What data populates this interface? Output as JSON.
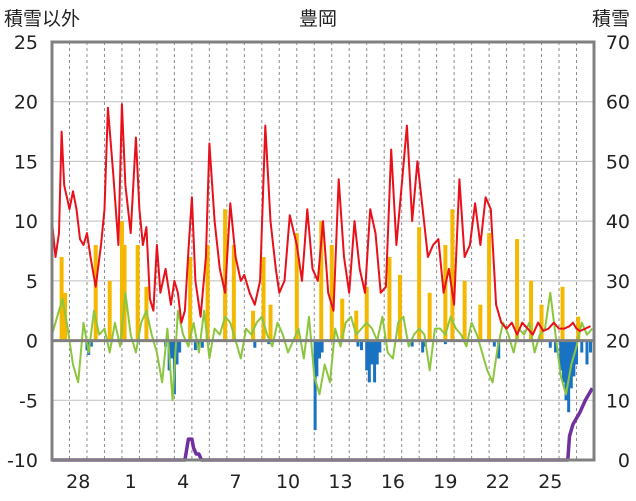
{
  "chart_data": {
    "type": "line",
    "title": "豊岡",
    "ylabel_left": "積雪以外",
    "ylabel_right": "積雪",
    "ylim_left": [
      -10,
      25
    ],
    "yticks_left": [
      "25",
      "20",
      "15",
      "10",
      "5",
      "0",
      "-5",
      "-10"
    ],
    "ylim_right": [
      0,
      70
    ],
    "yticks_right": [
      "70",
      "60",
      "50",
      "40",
      "30",
      "20",
      "10",
      "0"
    ],
    "xlim": [
      0,
      31
    ],
    "xticks": [
      {
        "x": 1.5,
        "label": "28"
      },
      {
        "x": 4.5,
        "label": "1"
      },
      {
        "x": 7.5,
        "label": "4"
      },
      {
        "x": 10.5,
        "label": "7"
      },
      {
        "x": 13.5,
        "label": "10"
      },
      {
        "x": 16.5,
        "label": "13"
      },
      {
        "x": 19.5,
        "label": "16"
      },
      {
        "x": 22.5,
        "label": "19"
      },
      {
        "x": 25.5,
        "label": "22"
      },
      {
        "x": 28.5,
        "label": "25"
      }
    ],
    "grid": "vertical dashed daily, horizontal solid",
    "colors": {
      "temperature": "#e8101a",
      "sunshine": "#f5b800",
      "precipitation": "#1a73c2",
      "temp_anomaly": "#8cc63f",
      "snow_depth": "#7030a0",
      "frame": "#808080",
      "grid": "#bfbfbf"
    },
    "series": [
      {
        "key": "temperature",
        "axis": "left",
        "x": [
          0.0,
          0.2,
          0.4,
          0.55,
          0.7,
          0.85,
          1.0,
          1.2,
          1.4,
          1.6,
          1.8,
          2.0,
          2.2,
          2.5,
          2.8,
          3.0,
          3.2,
          3.5,
          3.8,
          4.0,
          4.2,
          4.5,
          4.8,
          5.0,
          5.2,
          5.4,
          5.6,
          5.8,
          6.0,
          6.2,
          6.5,
          6.8,
          7.0,
          7.2,
          7.4,
          7.6,
          7.8,
          8.0,
          8.2,
          8.5,
          8.8,
          9.0,
          9.3,
          9.6,
          9.9,
          10.2,
          10.5,
          10.8,
          11.0,
          11.3,
          11.6,
          11.9,
          12.2,
          12.5,
          12.8,
          13.0,
          13.3,
          13.6,
          14.0,
          14.3,
          14.6,
          14.9,
          15.2,
          15.5,
          15.8,
          16.1,
          16.4,
          16.7,
          17.0,
          17.3,
          17.6,
          17.9,
          18.2,
          18.5,
          18.8,
          19.1,
          19.4,
          19.7,
          20.0,
          20.3,
          20.6,
          20.9,
          21.2,
          21.5,
          21.8,
          22.1,
          22.4,
          22.7,
          23.0,
          23.3,
          23.6,
          23.9,
          24.2,
          24.5,
          24.8,
          25.1,
          25.4,
          25.7,
          26.0,
          26.3,
          26.6,
          26.9,
          27.2,
          27.5,
          27.8,
          28.1,
          28.4,
          28.7,
          29.0,
          29.3,
          29.6,
          29.8,
          30.0,
          30.2,
          30.5,
          30.8
        ],
        "values": [
          10.0,
          7.0,
          9.0,
          17.5,
          13.0,
          12.0,
          11.0,
          12.5,
          11.0,
          8.5,
          8.0,
          9.0,
          7.0,
          4.5,
          8.0,
          11.0,
          19.5,
          14.0,
          8.0,
          19.8,
          13.0,
          9.0,
          17.0,
          11.0,
          8.0,
          9.5,
          3.5,
          2.5,
          8.0,
          4.0,
          6.0,
          3.0,
          5.0,
          4.0,
          1.5,
          2.5,
          7.5,
          12.0,
          5.0,
          2.0,
          7.0,
          16.5,
          10.0,
          6.0,
          4.0,
          11.5,
          7.0,
          5.0,
          5.5,
          4.0,
          3.0,
          5.0,
          18.0,
          10.0,
          6.0,
          4.0,
          5.0,
          10.5,
          8.0,
          5.0,
          11.0,
          6.0,
          5.0,
          10.0,
          4.0,
          2.5,
          13.5,
          7.0,
          4.0,
          10.0,
          6.0,
          4.0,
          11.0,
          9.0,
          4.0,
          4.5,
          16.0,
          8.0,
          13.0,
          18.0,
          10.0,
          15.0,
          11.0,
          7.0,
          8.0,
          8.5,
          4.0,
          6.0,
          3.0,
          13.5,
          7.0,
          8.0,
          11.5,
          8.0,
          12.0,
          11.0,
          3.0,
          1.5,
          1.0,
          1.5,
          0.5,
          1.5,
          1.0,
          0.5,
          1.5,
          0.8,
          1.0,
          1.5,
          1.0,
          1.0,
          1.2,
          1.5,
          1.0,
          0.8,
          1.0,
          1.2
        ]
      },
      {
        "key": "sunshine",
        "axis": "left",
        "bars": [
          {
            "x": 0.55,
            "v": 7.0
          },
          {
            "x": 0.75,
            "v": 4.0
          },
          {
            "x": 2.5,
            "v": 8.0
          },
          {
            "x": 3.3,
            "v": 5.0
          },
          {
            "x": 4.0,
            "v": 10.0
          },
          {
            "x": 4.15,
            "v": 8.0
          },
          {
            "x": 4.9,
            "v": 8.0
          },
          {
            "x": 5.4,
            "v": 4.5
          },
          {
            "x": 7.9,
            "v": 7.0
          },
          {
            "x": 8.9,
            "v": 8.0
          },
          {
            "x": 9.9,
            "v": 11.0
          },
          {
            "x": 10.4,
            "v": 8.0
          },
          {
            "x": 11.5,
            "v": 2.5
          },
          {
            "x": 12.1,
            "v": 7.0
          },
          {
            "x": 12.5,
            "v": 3.0
          },
          {
            "x": 14.0,
            "v": 9.0
          },
          {
            "x": 15.4,
            "v": 10.0
          },
          {
            "x": 16.0,
            "v": 8.0
          },
          {
            "x": 16.6,
            "v": 3.5
          },
          {
            "x": 17.4,
            "v": 2.5
          },
          {
            "x": 18.0,
            "v": 4.5
          },
          {
            "x": 19.3,
            "v": 7.0
          },
          {
            "x": 19.9,
            "v": 5.5
          },
          {
            "x": 21.0,
            "v": 9.5
          },
          {
            "x": 21.6,
            "v": 4.0
          },
          {
            "x": 22.5,
            "v": 8.0
          },
          {
            "x": 22.9,
            "v": 11.0
          },
          {
            "x": 23.6,
            "v": 5.0
          },
          {
            "x": 24.5,
            "v": 3.0
          },
          {
            "x": 25.0,
            "v": 9.0
          },
          {
            "x": 26.6,
            "v": 8.5
          },
          {
            "x": 27.4,
            "v": 5.0
          },
          {
            "x": 28.0,
            "v": 3.0
          },
          {
            "x": 29.2,
            "v": 4.5
          },
          {
            "x": 30.1,
            "v": 2.0
          }
        ]
      },
      {
        "key": "precipitation",
        "axis": "left",
        "bars": [
          {
            "x": 2.0,
            "v": -0.8
          },
          {
            "x": 2.1,
            "v": -1.2
          },
          {
            "x": 2.25,
            "v": -0.5
          },
          {
            "x": 6.5,
            "v": -0.5
          },
          {
            "x": 6.7,
            "v": -2.5
          },
          {
            "x": 6.85,
            "v": -1.5
          },
          {
            "x": 7.0,
            "v": -4.5
          },
          {
            "x": 7.15,
            "v": -2.0
          },
          {
            "x": 7.3,
            "v": -1.0
          },
          {
            "x": 8.2,
            "v": -0.8
          },
          {
            "x": 8.4,
            "v": -0.5
          },
          {
            "x": 8.6,
            "v": -0.6
          },
          {
            "x": 11.6,
            "v": -0.6
          },
          {
            "x": 12.4,
            "v": -0.3
          },
          {
            "x": 15.05,
            "v": -7.5
          },
          {
            "x": 15.15,
            "v": -3.0
          },
          {
            "x": 15.3,
            "v": -1.5
          },
          {
            "x": 15.45,
            "v": -1.0
          },
          {
            "x": 17.5,
            "v": -0.5
          },
          {
            "x": 17.7,
            "v": -0.8
          },
          {
            "x": 18.0,
            "v": -2.5
          },
          {
            "x": 18.15,
            "v": -3.5
          },
          {
            "x": 18.3,
            "v": -2.0
          },
          {
            "x": 18.45,
            "v": -3.5
          },
          {
            "x": 18.6,
            "v": -2.0
          },
          {
            "x": 18.75,
            "v": -1.0
          },
          {
            "x": 20.6,
            "v": -0.5
          },
          {
            "x": 21.2,
            "v": -1.0
          },
          {
            "x": 21.35,
            "v": -0.5
          },
          {
            "x": 22.5,
            "v": -0.3
          },
          {
            "x": 25.3,
            "v": -0.5
          },
          {
            "x": 25.55,
            "v": -1.5
          },
          {
            "x": 28.5,
            "v": -0.6
          },
          {
            "x": 28.8,
            "v": -1.0
          },
          {
            "x": 29.1,
            "v": -2.5
          },
          {
            "x": 29.25,
            "v": -3.5
          },
          {
            "x": 29.4,
            "v": -5.0
          },
          {
            "x": 29.55,
            "v": -6.0
          },
          {
            "x": 29.7,
            "v": -4.0
          },
          {
            "x": 29.85,
            "v": -3.0
          },
          {
            "x": 30.0,
            "v": -2.0
          },
          {
            "x": 30.3,
            "v": -1.0
          },
          {
            "x": 30.6,
            "v": -2.0
          },
          {
            "x": 30.8,
            "v": -1.0
          }
        ]
      },
      {
        "key": "temp_anomaly",
        "axis": "left",
        "x": [
          0.0,
          0.3,
          0.6,
          0.9,
          1.2,
          1.5,
          1.8,
          2.1,
          2.4,
          2.7,
          3.0,
          3.3,
          3.6,
          3.9,
          4.2,
          4.5,
          4.8,
          5.1,
          5.4,
          5.7,
          6.0,
          6.3,
          6.6,
          6.9,
          7.2,
          7.5,
          7.8,
          8.1,
          8.4,
          8.7,
          9.0,
          9.3,
          9.6,
          9.9,
          10.2,
          10.5,
          10.8,
          11.1,
          11.4,
          11.7,
          12.0,
          12.3,
          12.6,
          12.9,
          13.2,
          13.5,
          13.8,
          14.1,
          14.4,
          14.7,
          15.0,
          15.3,
          15.6,
          15.9,
          16.2,
          16.5,
          16.8,
          17.1,
          17.4,
          17.7,
          18.0,
          18.3,
          18.6,
          18.9,
          19.2,
          19.5,
          19.8,
          20.1,
          20.4,
          20.7,
          21.0,
          21.3,
          21.6,
          21.9,
          22.2,
          22.5,
          22.8,
          23.1,
          23.4,
          23.7,
          24.0,
          24.3,
          24.6,
          24.9,
          25.2,
          25.5,
          25.8,
          26.1,
          26.4,
          26.7,
          27.0,
          27.3,
          27.6,
          27.9,
          28.2,
          28.5,
          28.8,
          29.1,
          29.4,
          29.7,
          30.0,
          30.3,
          30.6,
          30.9
        ],
        "values": [
          0.5,
          2.0,
          3.5,
          1.0,
          -2.0,
          -3.5,
          1.5,
          -1.0,
          2.5,
          0.5,
          1.0,
          -1.0,
          1.5,
          -0.5,
          4.0,
          0.5,
          -1.0,
          1.5,
          2.5,
          0.5,
          -1.0,
          -3.5,
          1.0,
          -5.0,
          2.5,
          0.5,
          -0.5,
          1.5,
          -1.0,
          2.5,
          -1.5,
          1.0,
          0.5,
          2.0,
          1.5,
          0.0,
          -1.5,
          1.0,
          0.5,
          1.5,
          2.0,
          0.5,
          -0.5,
          1.5,
          0.5,
          -1.0,
          0.0,
          1.0,
          -1.5,
          2.0,
          -3.0,
          -4.5,
          -2.0,
          -3.5,
          1.0,
          -0.5,
          1.5,
          2.0,
          0.5,
          1.0,
          1.5,
          1.0,
          0.0,
          2.0,
          -1.0,
          -1.5,
          1.5,
          2.0,
          -0.5,
          0.5,
          1.0,
          0.5,
          -2.5,
          1.0,
          1.0,
          0.5,
          2.0,
          1.0,
          0.5,
          -0.5,
          1.5,
          0.5,
          -1.0,
          -2.5,
          -3.5,
          -0.5,
          1.5,
          0.5,
          -1.0,
          1.0,
          0.5,
          1.5,
          -1.0,
          0.5,
          1.0,
          4.0,
          0.5,
          -3.0,
          -4.5,
          -2.0,
          -0.5,
          1.5,
          0.5,
          1.0
        ]
      },
      {
        "key": "snow_depth",
        "axis": "right",
        "x": [
          0.0,
          7.6,
          7.8,
          8.0,
          8.1,
          8.25,
          8.4,
          8.55,
          8.7,
          29.5,
          29.6,
          29.8,
          30.0,
          30.2,
          30.5,
          30.9
        ],
        "values": [
          0,
          0,
          3.5,
          3.5,
          2,
          1,
          1,
          0,
          0,
          0,
          4,
          6,
          7,
          8,
          10,
          12
        ]
      }
    ]
  }
}
